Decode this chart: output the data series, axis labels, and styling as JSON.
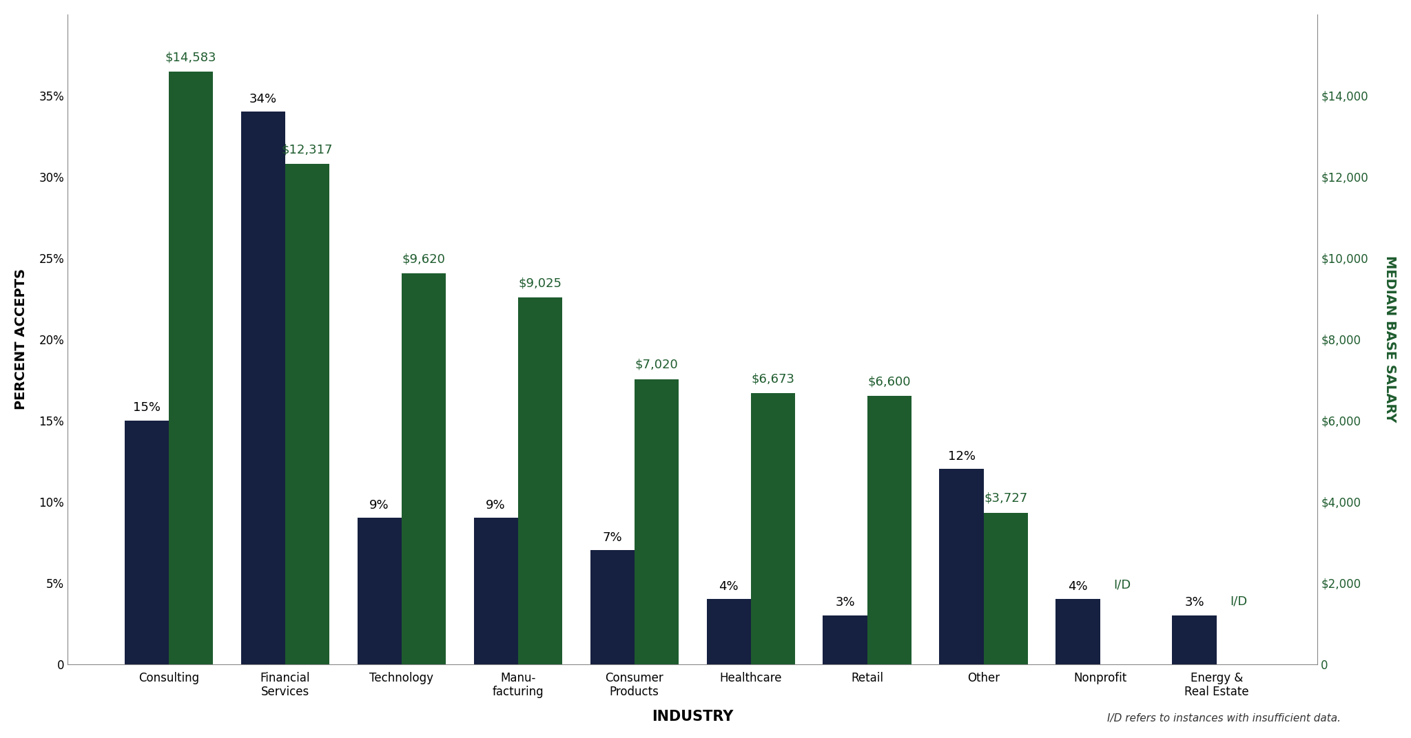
{
  "categories": [
    "Consulting",
    "Financial\nServices",
    "Technology",
    "Manu-\nfacturing",
    "Consumer\nProducts",
    "Healthcare",
    "Retail",
    "Other",
    "Nonprofit",
    "Energy &\nReal Estate"
  ],
  "percent_accepts": [
    15,
    34,
    9,
    9,
    7,
    4,
    3,
    12,
    4,
    3
  ],
  "median_salary": [
    14583,
    12317,
    9620,
    9025,
    7020,
    6673,
    6600,
    3727,
    0,
    0
  ],
  "percent_labels": [
    "15%",
    "34%",
    "9%",
    "9%",
    "7%",
    "4%",
    "3%",
    "12%",
    "4%",
    "3%"
  ],
  "salary_labels": [
    "$14,583",
    "$12,317",
    "$9,620",
    "$9,025",
    "$7,020",
    "$6,673",
    "$6,600",
    "$3,727",
    "I/D",
    "I/D"
  ],
  "salary_is_id": [
    false,
    false,
    false,
    false,
    false,
    false,
    false,
    false,
    true,
    true
  ],
  "bar_width": 0.38,
  "dark_navy": "#162040",
  "dark_green": "#1e5c2e",
  "background_color": "#ffffff",
  "left_ylabel": "PERCENT ACCEPTS",
  "right_ylabel": "MEDIAN BASE SALARY",
  "xlabel": "INDUSTRY",
  "ylim_left": [
    0,
    40
  ],
  "ylim_right": [
    0,
    16000
  ],
  "left_yticks": [
    0,
    5,
    10,
    15,
    20,
    25,
    30,
    35
  ],
  "left_yticklabels": [
    "0",
    "5%",
    "10%",
    "15%",
    "20%",
    "25%",
    "30%",
    "35%"
  ],
  "right_yticks": [
    0,
    2000,
    4000,
    6000,
    8000,
    10000,
    12000,
    14000
  ],
  "right_yticklabels": [
    "0",
    "$2,000",
    "$4,000",
    "$6,000",
    "$8,000",
    "$10,000",
    "$12,000",
    "$14,000"
  ],
  "footnote": "I/D refers to instances with insufficient data.",
  "label_fontsize": 13,
  "tick_fontsize": 12,
  "axis_label_fontsize": 14,
  "xlabel_fontsize": 15
}
